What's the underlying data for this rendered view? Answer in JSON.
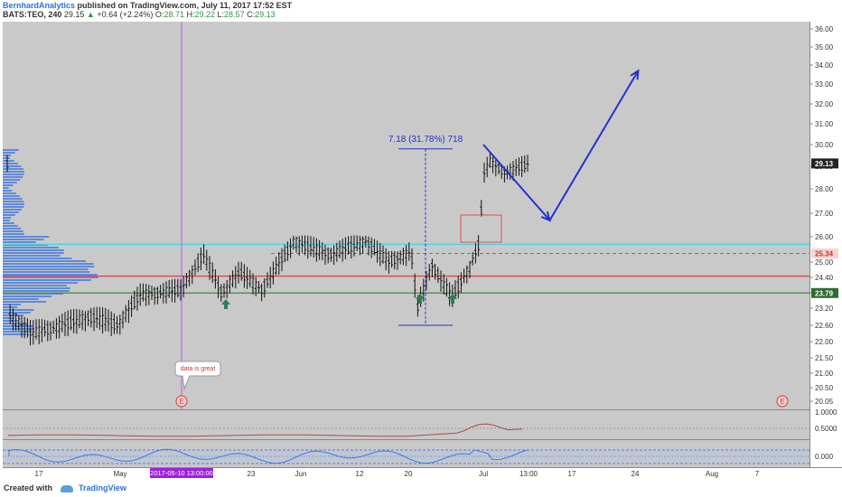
{
  "header": {
    "author": "BernhardAnalytics",
    "published": "published on TradingView.com, July 11, 2017 17:52 EST",
    "symbol": "BATS:TEO, 240",
    "price": "29.15",
    "change_arrow": "▲",
    "change": "+0.64 (+2.24%)",
    "o_label": "O:",
    "o": "28.71",
    "h_label": "H:",
    "h": "29.22",
    "l_label": "L:",
    "l": "28.57",
    "c_label": "C:",
    "c": "29.13"
  },
  "footer": {
    "created_with": "Created with",
    "brand": "TradingView"
  },
  "chart_data": {
    "type": "candlestick",
    "price_axis": {
      "ticks": [
        "36.00",
        "35.00",
        "34.00",
        "33.00",
        "32.00",
        "31.00",
        "30.00",
        "29.00",
        "28.00",
        "27.00",
        "26.00",
        "25.00",
        "24.40",
        "23.80",
        "23.20",
        "22.60",
        "22.00",
        "21.50",
        "21.00",
        "20.50",
        "20.05"
      ],
      "labels": [
        {
          "text": "29.13",
          "value": 29.13,
          "style": "dark"
        },
        {
          "text": "25.34",
          "value": 25.34,
          "style": "red"
        },
        {
          "text": "23.79",
          "value": 23.79,
          "style": "green"
        }
      ]
    },
    "time_axis": {
      "ticks": [
        "17",
        "May",
        "9",
        "23",
        "Jun",
        "12",
        "20",
        "Jul",
        "13:00",
        "17",
        "24",
        "Aug",
        "7"
      ],
      "cursor_label": "2017-05-10 13:00:00"
    },
    "levels": [
      {
        "name": "resistance-cyan",
        "price": 25.7,
        "color": "#41d6e6"
      },
      {
        "name": "dashed-red",
        "price": 25.34,
        "color": "#e04848"
      },
      {
        "name": "mid-red",
        "price": 24.45,
        "color": "#e04848"
      },
      {
        "name": "support-green",
        "price": 23.79,
        "color": "#3a8a3a"
      }
    ],
    "measure": {
      "label": "7.18 (31.78%) 718",
      "from_price": 22.6,
      "to_price": 29.8
    },
    "annotations": {
      "callout": "data is great",
      "earnings_marker": "E"
    },
    "projection_path": [
      {
        "date": "2017-07-01",
        "price": 30.0
      },
      {
        "date": "2017-07-10",
        "price": 26.7
      },
      {
        "date": "2017-07-22",
        "price": 33.7
      }
    ],
    "oscillator1_ticks": [
      "1.0000",
      "0.5000"
    ],
    "oscillator2_ticks": [
      "0.000"
    ]
  }
}
